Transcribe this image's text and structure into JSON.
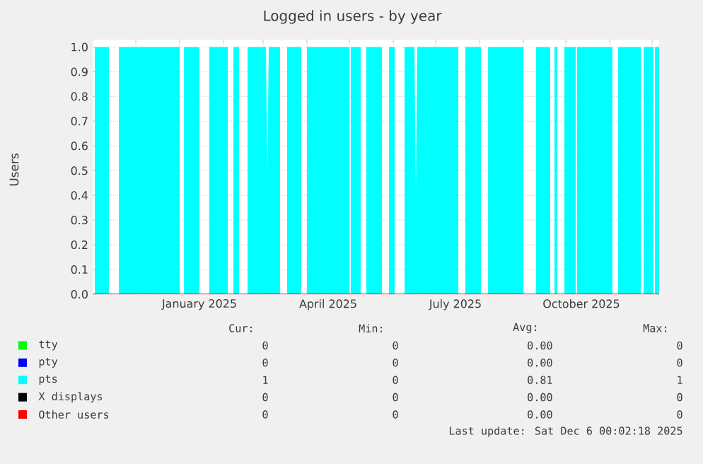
{
  "chart_data": {
    "type": "area",
    "title": "Logged in users - by year",
    "ylabel": "Users",
    "xlim": [
      "2024-11-01",
      "2025-12-06"
    ],
    "xticks": [
      {
        "value": "2024-12-01",
        "label": null
      },
      {
        "value": "2025-01-01",
        "label": null
      },
      {
        "value": "2025-01-15",
        "label": "January 2025"
      },
      {
        "value": "2025-02-01",
        "label": null
      },
      {
        "value": "2025-03-01",
        "label": null
      },
      {
        "value": "2025-04-01",
        "label": null
      },
      {
        "value": "2025-04-16",
        "label": "April 2025"
      },
      {
        "value": "2025-05-01",
        "label": null
      },
      {
        "value": "2025-06-01",
        "label": null
      },
      {
        "value": "2025-07-01",
        "label": null
      },
      {
        "value": "2025-07-15",
        "label": "July 2025"
      },
      {
        "value": "2025-08-01",
        "label": null
      },
      {
        "value": "2025-09-01",
        "label": null
      },
      {
        "value": "2025-10-01",
        "label": null
      },
      {
        "value": "2025-10-12",
        "label": "October 2025"
      },
      {
        "value": "2025-11-01",
        "label": null
      },
      {
        "value": "2025-12-01",
        "label": null
      }
    ],
    "ylim": [
      0,
      1.03
    ],
    "yticks": [
      {
        "value": 0,
        "label": "0.0"
      },
      {
        "value": 0.1,
        "label": "0.1"
      },
      {
        "value": 0.2,
        "label": "0.2"
      },
      {
        "value": 0.3,
        "label": "0.3"
      },
      {
        "value": 0.4,
        "label": "0.4"
      },
      {
        "value": 0.5,
        "label": "0.5"
      },
      {
        "value": 0.6,
        "label": "0.6"
      },
      {
        "value": 0.7,
        "label": "0.7"
      },
      {
        "value": 0.8,
        "label": "0.8"
      },
      {
        "value": 0.9,
        "label": "0.9"
      },
      {
        "value": 1,
        "label": "1.0"
      }
    ],
    "grid": true,
    "legend": "bottom",
    "series": [
      {
        "name": "tty",
        "color": "#00ff00"
      },
      {
        "name": "pty",
        "color": "#0000ff"
      },
      {
        "name": "pts",
        "color": "#00ffff",
        "x": [
          "2024-11-02",
          "2024-11-12",
          "2024-11-12",
          "2024-11-19",
          "2024-11-19",
          "2025-01-01",
          "2025-01-01",
          "2025-01-04",
          "2025-01-04",
          "2025-01-15",
          "2025-01-15",
          "2025-01-22",
          "2025-01-22",
          "2025-02-04",
          "2025-02-04",
          "2025-02-08",
          "2025-02-08",
          "2025-02-12",
          "2025-02-12",
          "2025-02-18",
          "2025-02-18",
          "2025-03-03",
          "2025-03-04",
          "2025-03-05",
          "2025-03-13",
          "2025-03-13",
          "2025-03-18",
          "2025-03-18",
          "2025-03-28",
          "2025-03-28",
          "2025-04-01",
          "2025-04-01",
          "2025-05-01",
          "2025-05-01",
          "2025-05-02",
          "2025-05-02",
          "2025-05-09",
          "2025-05-09",
          "2025-05-13",
          "2025-05-13",
          "2025-05-24",
          "2025-05-24",
          "2025-05-29",
          "2025-05-29",
          "2025-06-02",
          "2025-06-02",
          "2025-06-09",
          "2025-06-09",
          "2025-06-16",
          "2025-06-17",
          "2025-06-18",
          "2025-07-17",
          "2025-07-17",
          "2025-07-22",
          "2025-07-22",
          "2025-08-02",
          "2025-08-02",
          "2025-08-07",
          "2025-08-07",
          "2025-09-01",
          "2025-09-01",
          "2025-09-10",
          "2025-09-10",
          "2025-09-20",
          "2025-09-20",
          "2025-09-23",
          "2025-09-23",
          "2025-09-25",
          "2025-09-25",
          "2025-09-30",
          "2025-09-30",
          "2025-10-08",
          "2025-10-08",
          "2025-10-09",
          "2025-10-09",
          "2025-11-03",
          "2025-11-03",
          "2025-11-07",
          "2025-11-07",
          "2025-11-23",
          "2025-11-23",
          "2025-11-25",
          "2025-11-25",
          "2025-12-02",
          "2025-12-02",
          "2025-12-03",
          "2025-12-03",
          "2025-12-06"
        ],
        "values": [
          1,
          1,
          0,
          0,
          1,
          1,
          0,
          0,
          1,
          1,
          0,
          0,
          1,
          1,
          0,
          0,
          1,
          1,
          0,
          0,
          1,
          1,
          0.49,
          1,
          1,
          0,
          0,
          1,
          1,
          0,
          0,
          1,
          1,
          0,
          0,
          1,
          1,
          0,
          0,
          1,
          1,
          0,
          0,
          1,
          1,
          0,
          0,
          1,
          1,
          0.42,
          1,
          1,
          0,
          0,
          1,
          1,
          0,
          0,
          1,
          1,
          0,
          0,
          1,
          1,
          0,
          0,
          1,
          1,
          0,
          0,
          1,
          1,
          0,
          0,
          1,
          1,
          0,
          0,
          1,
          1,
          0,
          0,
          1,
          1,
          0,
          0,
          1,
          1
        ]
      },
      {
        "name": "X displays",
        "color": "#000000"
      },
      {
        "name": "Other users",
        "type": "line",
        "color": "#ff0000",
        "x": [
          "2024-11-01",
          "2025-12-06"
        ],
        "values": [
          0,
          0
        ]
      }
    ],
    "annotations": [
      "Cur:",
      "Min:",
      "Avg:",
      "Max:",
      "0",
      "0",
      "0.00",
      "0",
      "0",
      "0",
      "0.00",
      "0",
      "1",
      "0",
      "0.81",
      "1",
      "0",
      "0",
      "0.00",
      "0",
      "0",
      "0",
      "0.00",
      "0",
      "Last update: Sat Dec  6 00:02:18 2025"
    ]
  }
}
